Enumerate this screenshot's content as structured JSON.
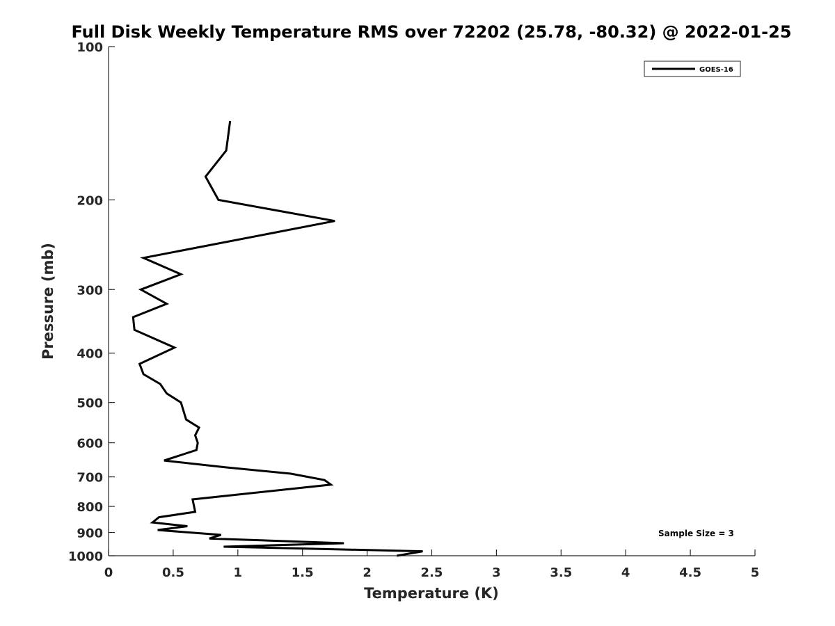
{
  "chart_data": {
    "type": "line",
    "title": "Full Disk Weekly Temperature RMS over 72202 (25.78, -80.32) @ 2022-01-25",
    "xlabel": "Temperature (K)",
    "ylabel": "Pressure (mb)",
    "xlim": [
      0,
      5
    ],
    "ylim": [
      100,
      1000
    ],
    "y_scale": "log",
    "y_reversed": true,
    "x_ticks": [
      0,
      0.5,
      1,
      1.5,
      2,
      2.5,
      3,
      3.5,
      4,
      4.5,
      5
    ],
    "x_tick_labels": [
      "0",
      "0.5",
      "1",
      "1.5",
      "2",
      "2.5",
      "3",
      "3.5",
      "4",
      "4.5",
      "5"
    ],
    "y_ticks": [
      100,
      200,
      300,
      400,
      500,
      600,
      700,
      800,
      900,
      1000
    ],
    "y_tick_labels": [
      "100",
      "200",
      "300",
      "400",
      "500",
      "600",
      "700",
      "800",
      "900",
      "1000"
    ],
    "grid": false,
    "legend_position": "top-right",
    "series": [
      {
        "name": "GOES-16",
        "color": "#000000",
        "points": [
          {
            "x": 0.94,
            "y": 140
          },
          {
            "x": 0.91,
            "y": 160
          },
          {
            "x": 0.75,
            "y": 180
          },
          {
            "x": 0.85,
            "y": 200
          },
          {
            "x": 1.75,
            "y": 220
          },
          {
            "x": 0.27,
            "y": 260
          },
          {
            "x": 0.56,
            "y": 280
          },
          {
            "x": 0.25,
            "y": 300
          },
          {
            "x": 0.45,
            "y": 320
          },
          {
            "x": 0.19,
            "y": 340
          },
          {
            "x": 0.2,
            "y": 360
          },
          {
            "x": 0.51,
            "y": 390
          },
          {
            "x": 0.24,
            "y": 420
          },
          {
            "x": 0.27,
            "y": 440
          },
          {
            "x": 0.4,
            "y": 460
          },
          {
            "x": 0.45,
            "y": 480
          },
          {
            "x": 0.56,
            "y": 500
          },
          {
            "x": 0.6,
            "y": 540
          },
          {
            "x": 0.7,
            "y": 560
          },
          {
            "x": 0.67,
            "y": 580
          },
          {
            "x": 0.69,
            "y": 600
          },
          {
            "x": 0.68,
            "y": 620
          },
          {
            "x": 0.43,
            "y": 650
          },
          {
            "x": 0.9,
            "y": 670
          },
          {
            "x": 1.41,
            "y": 690
          },
          {
            "x": 1.67,
            "y": 710
          },
          {
            "x": 1.72,
            "y": 725
          },
          {
            "x": 0.65,
            "y": 775
          },
          {
            "x": 0.67,
            "y": 820
          },
          {
            "x": 0.39,
            "y": 840
          },
          {
            "x": 0.34,
            "y": 860
          },
          {
            "x": 0.61,
            "y": 875
          },
          {
            "x": 0.38,
            "y": 890
          },
          {
            "x": 0.87,
            "y": 910
          },
          {
            "x": 0.78,
            "y": 925
          },
          {
            "x": 1.82,
            "y": 945
          },
          {
            "x": 0.89,
            "y": 960
          },
          {
            "x": 2.43,
            "y": 980
          },
          {
            "x": 2.23,
            "y": 1000
          }
        ]
      }
    ],
    "annotations": [
      {
        "text": "Sample Size = 3",
        "position": "bottom-right"
      }
    ]
  }
}
